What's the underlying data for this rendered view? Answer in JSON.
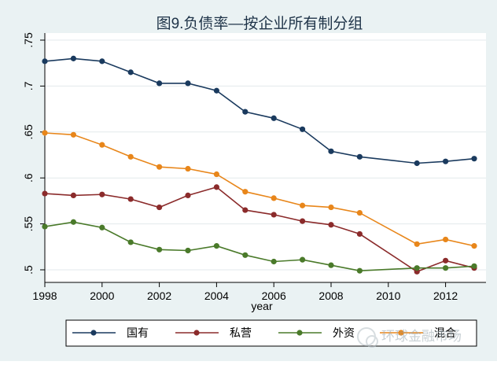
{
  "chart_data": {
    "type": "line",
    "title": "图9.负债率—按企业所有制分组",
    "xlabel": "year",
    "ylabel": "",
    "xlim": [
      1998,
      2013
    ],
    "ylim": [
      0.5,
      0.75
    ],
    "xticks": [
      1998,
      2000,
      2002,
      2004,
      2006,
      2008,
      2010,
      2012
    ],
    "xtick_labels": [
      "1998",
      "2000",
      "2002",
      "2004",
      "2006",
      "2008",
      "2010",
      "2012"
    ],
    "yticks": [
      0.5,
      0.55,
      0.6,
      0.65,
      0.7,
      0.75
    ],
    "ytick_labels": [
      ".5",
      ".55",
      ".6",
      ".65",
      ".7",
      ".75"
    ],
    "grid": "horizontal",
    "legend_position": "bottom",
    "x": [
      1998,
      1999,
      2000,
      2001,
      2002,
      2003,
      2004,
      2005,
      2006,
      2007,
      2008,
      2009,
      2011,
      2012,
      2013
    ],
    "series": [
      {
        "name": "国有",
        "color": "#1a3a5e",
        "values": [
          0.727,
          0.73,
          0.727,
          0.715,
          0.703,
          0.703,
          0.695,
          0.672,
          0.665,
          0.653,
          0.629,
          0.623,
          0.616,
          0.618,
          0.621
        ]
      },
      {
        "name": "私营",
        "color": "#8b2b2b",
        "values": [
          0.583,
          0.581,
          0.582,
          0.577,
          0.568,
          0.581,
          0.59,
          0.565,
          0.56,
          0.553,
          0.549,
          0.539,
          0.498,
          0.51,
          0.502
        ]
      },
      {
        "name": "外资",
        "color": "#4a7a2a",
        "values": [
          0.547,
          0.552,
          0.546,
          0.53,
          0.522,
          0.521,
          0.526,
          0.516,
          0.509,
          0.511,
          0.505,
          0.499,
          0.502,
          0.502,
          0.504
        ]
      },
      {
        "name": "混合",
        "color": "#e8861a",
        "values": [
          0.649,
          0.647,
          0.636,
          0.623,
          0.612,
          0.61,
          0.604,
          0.585,
          0.578,
          0.57,
          0.568,
          0.562,
          0.528,
          0.533,
          0.526
        ]
      }
    ]
  },
  "watermark": {
    "text": "环球金融市场"
  }
}
